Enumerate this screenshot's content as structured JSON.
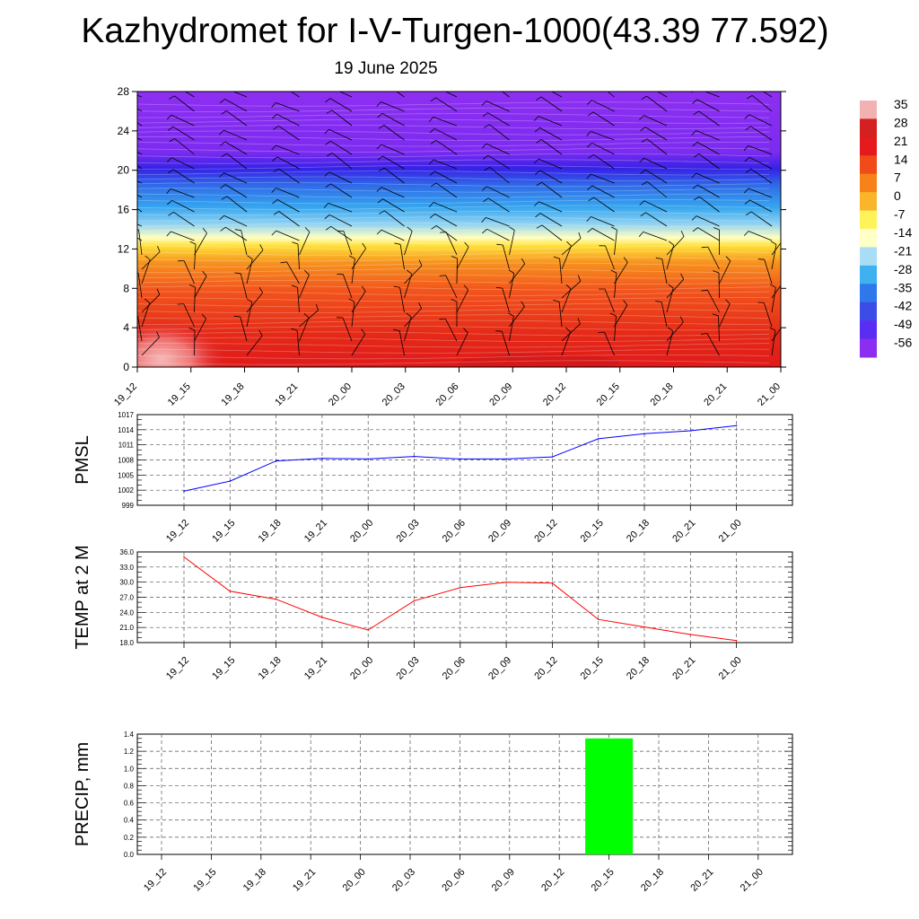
{
  "header": {
    "title": "Kazhydromet for I-V-Turgen-1000(43.39 77.592)",
    "date": "19 June 2025"
  },
  "time_labels": [
    "19_12",
    "19_15",
    "19_18",
    "19_21",
    "20_00",
    "20_03",
    "20_06",
    "20_09",
    "20_12",
    "20_15",
    "20_18",
    "20_21",
    "21_00"
  ],
  "chart_data": [
    {
      "type": "heatmap",
      "name": "cross-section",
      "x": [
        "19_12",
        "19_15",
        "19_18",
        "19_21",
        "20_00",
        "20_03",
        "20_06",
        "20_09",
        "20_12",
        "20_15",
        "20_18",
        "20_21",
        "21_00"
      ],
      "y_ticks": [
        0,
        4,
        8,
        12,
        16,
        20,
        24,
        28
      ],
      "ylim": [
        0,
        28
      ],
      "colorbar": {
        "labels": [
          35,
          28,
          21,
          14,
          7,
          0,
          -7,
          -14,
          -21,
          -28,
          -35,
          -42,
          -49,
          -56
        ],
        "colors": [
          "#f2b2b2",
          "#d42020",
          "#e41a1c",
          "#f24b1a",
          "#f7821a",
          "#fbb52a",
          "#fff35a",
          "#ffffc8",
          "#a9dcf5",
          "#3fb0f0",
          "#2e78ec",
          "#3b4de6",
          "#5a2ef2",
          "#8c2df0"
        ]
      },
      "colors": {
        "top": "#8c2df0",
        "band_blue": "#3b2ee8",
        "band_cyan": "#41b6f0",
        "band_yellow": "#fff35a",
        "band_orange": "#f5871e",
        "surface": "#e41a1c",
        "hot_spot": "#f3a9a9"
      }
    },
    {
      "type": "line",
      "name": "pmsl",
      "ylabel": "PMSL",
      "x": [
        "19_12",
        "19_15",
        "19_18",
        "19_21",
        "20_00",
        "20_03",
        "20_06",
        "20_09",
        "20_12",
        "20_15",
        "20_18",
        "20_21",
        "21_00"
      ],
      "values": [
        1001.8,
        1003.8,
        1007.8,
        1008.3,
        1008.2,
        1008.7,
        1008.2,
        1008.2,
        1008.6,
        1012.2,
        1013.2,
        1013.8,
        1014.8
      ],
      "ylim": [
        999,
        1017
      ],
      "y_ticks": [
        999,
        1002,
        1005,
        1008,
        1011,
        1014,
        1017
      ],
      "color": "#0000ff"
    },
    {
      "type": "line",
      "name": "temp",
      "ylabel": "TEMP at 2 M",
      "x": [
        "19_12",
        "19_15",
        "19_18",
        "19_21",
        "20_00",
        "20_03",
        "20_06",
        "20_09",
        "20_12",
        "20_15",
        "20_18",
        "20_21",
        "21_00"
      ],
      "values": [
        35.0,
        28.2,
        26.6,
        23.0,
        20.5,
        26.3,
        28.9,
        30.0,
        29.8,
        22.6,
        21.1,
        19.6,
        18.4
      ],
      "ylim": [
        18,
        36
      ],
      "y_ticks": [
        "18.0",
        "21.0",
        "24.0",
        "27.0",
        "30.0",
        "33.0",
        "36.0"
      ],
      "color": "#ff0000"
    },
    {
      "type": "bar",
      "name": "precip",
      "ylabel": "PRECIP, mm",
      "categories": [
        "19_12",
        "19_15",
        "19_18",
        "19_21",
        "20_00",
        "20_03",
        "20_06",
        "20_09",
        "20_12",
        "20_15",
        "20_18",
        "20_21",
        "21_00"
      ],
      "values": [
        0,
        0,
        0,
        0,
        0,
        0,
        0,
        0,
        0,
        1.35,
        0,
        0,
        0
      ],
      "ylim": [
        0,
        1.4
      ],
      "y_ticks": [
        "0.0",
        "0.2",
        "0.4",
        "0.6",
        "0.8",
        "1.0",
        "1.2",
        "1.4"
      ],
      "color": "#00ff00"
    }
  ]
}
